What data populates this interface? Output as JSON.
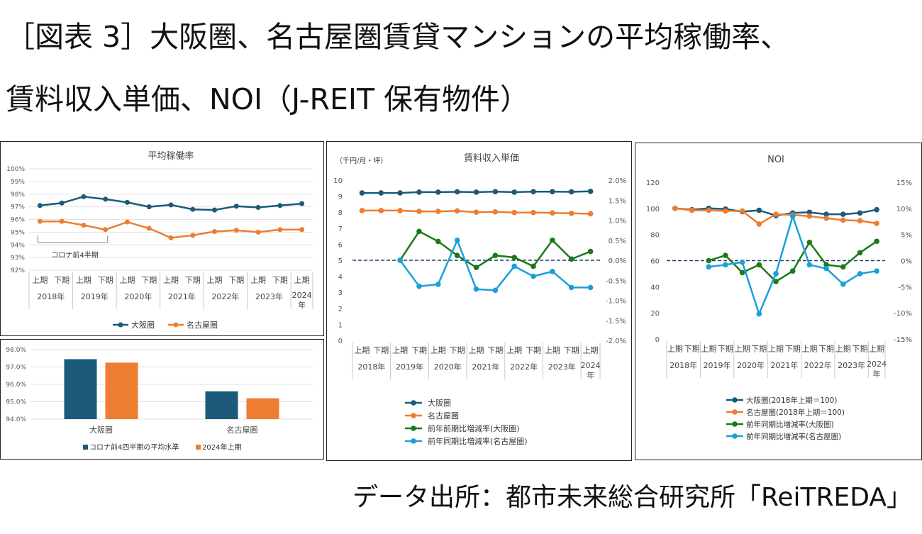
{
  "title": {
    "line1": "［図表 3］大阪圏、名古屋圏賃貸マンションの平均稼働率、",
    "line2": "賃料収入単価、NOI（J-REIT 保有物件）"
  },
  "source": "データ出所：都市未来総合研究所「ReiTREDA」",
  "colors": {
    "osaka": "#1b5a7a",
    "nagoya": "#ed7d31",
    "osaka_change": "#1a7a1a",
    "nagoya_change": "#1aa0d8",
    "zero_line": "#1f3f6b",
    "bar_osaka": "#1b5a7a",
    "bar_nagoya": "#ed7d31"
  },
  "chart_data": [
    {
      "id": "occupancy",
      "type": "line",
      "title": "平均稼働率",
      "ylim": [
        92,
        100
      ],
      "yticks": [
        "100%",
        "99%",
        "98%",
        "97%",
        "96%",
        "95%",
        "94%",
        "93%",
        "92%"
      ],
      "x_periods": [
        "上期",
        "下期",
        "上期",
        "下期",
        "上期",
        "下期",
        "上期",
        "下期",
        "上期",
        "下期",
        "上期",
        "下期",
        "上期"
      ],
      "x_years": [
        "2018年",
        "2019年",
        "2020年",
        "2021年",
        "2022年",
        "2023年",
        "2024年"
      ],
      "series": [
        {
          "name": "大阪圏",
          "values": [
            97.1,
            97.3,
            97.8,
            97.6,
            97.35,
            97.0,
            97.15,
            96.8,
            96.75,
            97.05,
            96.95,
            97.1,
            97.25
          ]
        },
        {
          "name": "名古屋圏",
          "values": [
            95.85,
            95.85,
            95.55,
            95.2,
            95.8,
            95.3,
            94.55,
            94.75,
            95.05,
            95.15,
            95.0,
            95.2,
            95.2
          ]
        }
      ],
      "annotation": "コロナ前4半期"
    },
    {
      "id": "occupancy_compare",
      "type": "bar",
      "categories": [
        "大阪圏",
        "名古屋圏"
      ],
      "ylim": [
        94,
        98
      ],
      "yticks": [
        "98.0%",
        "97.0%",
        "96.0%",
        "95.0%",
        "94.0%"
      ],
      "series": [
        {
          "name": "コロナ前4四半期の平均水準",
          "values": [
            97.45,
            95.6
          ]
        },
        {
          "name": "2024年上期",
          "values": [
            97.25,
            95.2
          ]
        }
      ]
    },
    {
      "id": "rent_unit",
      "type": "line",
      "title": "賃料収入単価",
      "unit_label": "（千円/月・坪）",
      "ylim_left": [
        0,
        10
      ],
      "yticks_left": [
        "10",
        "9",
        "8",
        "7",
        "6",
        "5",
        "4",
        "3",
        "2",
        "1",
        "0"
      ],
      "ylim_right": [
        -2.0,
        2.0
      ],
      "yticks_right": [
        "2.0%",
        "1.5%",
        "1.0%",
        "0.5%",
        "0.0%",
        "-0.5%",
        "-1.0%",
        "-1.5%",
        "-2.0%"
      ],
      "x_periods": [
        "上期",
        "下期",
        "上期",
        "下期",
        "上期",
        "下期",
        "上期",
        "下期",
        "上期",
        "下期",
        "上期",
        "下期",
        "上期"
      ],
      "x_years": [
        "2018年",
        "2019年",
        "2020年",
        "2021年",
        "2022年",
        "2023年",
        "2024年"
      ],
      "series": [
        {
          "name": "大阪圏",
          "axis": "left",
          "values": [
            9.2,
            9.2,
            9.2,
            9.25,
            9.25,
            9.27,
            9.25,
            9.28,
            9.25,
            9.28,
            9.28,
            9.27,
            9.3
          ]
        },
        {
          "name": "名古屋圏",
          "axis": "left",
          "values": [
            8.1,
            8.1,
            8.1,
            8.05,
            8.05,
            8.08,
            8.0,
            8.02,
            7.98,
            7.98,
            7.95,
            7.93,
            7.9
          ]
        },
        {
          "name": "前年前期比増減率(大阪圏)",
          "axis": "right",
          "values": [
            null,
            null,
            0.0,
            0.72,
            0.47,
            0.12,
            -0.18,
            0.12,
            0.07,
            -0.15,
            0.5,
            0.03,
            0.22
          ]
        },
        {
          "name": "前年同期比増減率(名古屋圏)",
          "axis": "right",
          "values": [
            null,
            null,
            0.0,
            -0.65,
            -0.6,
            0.5,
            -0.72,
            -0.75,
            -0.15,
            -0.4,
            -0.28,
            -0.68,
            -0.68
          ]
        }
      ]
    },
    {
      "id": "noi",
      "type": "line",
      "title": "NOI",
      "ylim_left": [
        0,
        120
      ],
      "yticks_left": [
        "120",
        "100",
        "80",
        "60",
        "40",
        "20",
        "0"
      ],
      "ylim_right": [
        -15,
        15
      ],
      "yticks_right": [
        "15%",
        "10%",
        "5%",
        "0%",
        "-5%",
        "-10%",
        "-15%"
      ],
      "x_periods": [
        "上期",
        "下期",
        "上期",
        "下期",
        "上期",
        "下期",
        "上期",
        "下期",
        "上期",
        "下期",
        "上期",
        "下期",
        "上期"
      ],
      "x_years": [
        "2018年",
        "2019年",
        "2020年",
        "2021年",
        "2022年",
        "2023年",
        "2024年"
      ],
      "series": [
        {
          "name": "大阪圏(2018年上期＝100)",
          "axis": "left",
          "values": [
            100,
            99,
            100,
            99.5,
            97.5,
            98.5,
            94.5,
            96.5,
            97,
            95.5,
            95.5,
            96.5,
            99
          ]
        },
        {
          "name": "名古屋圏(2018年上期＝100)",
          "axis": "left",
          "values": [
            100,
            98.5,
            98.5,
            98,
            98,
            88,
            95.5,
            95,
            94,
            92.5,
            91,
            90.5,
            88.5
          ]
        },
        {
          "name": "前年同期比増減率(大阪圏)",
          "axis": "right",
          "values": [
            null,
            null,
            0,
            1,
            -2.3,
            -0.8,
            -4,
            -2,
            3.5,
            -0.8,
            -1.2,
            1.5,
            3.7
          ]
        },
        {
          "name": "前年同期比増減率(名古屋圏)",
          "axis": "right",
          "values": [
            null,
            null,
            -1.2,
            -0.8,
            -0.3,
            -10.2,
            -2.5,
            8.5,
            -0.8,
            -1.5,
            -4.5,
            -2.5,
            -2
          ]
        }
      ]
    }
  ]
}
